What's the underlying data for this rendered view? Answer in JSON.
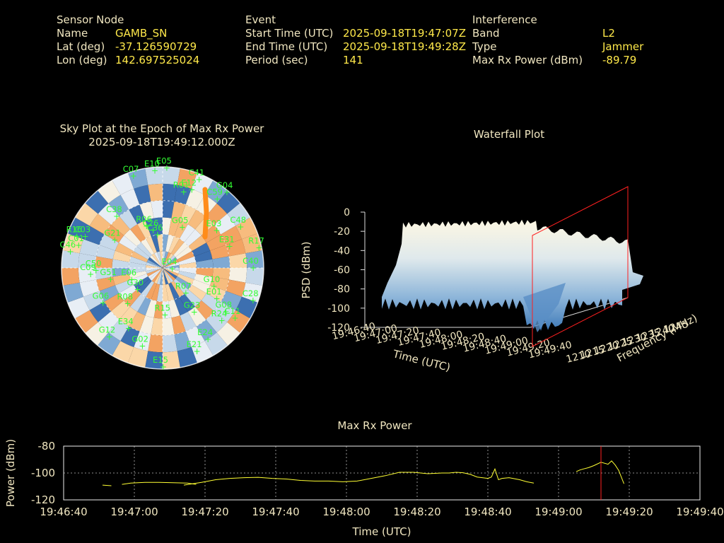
{
  "header": {
    "sensor": {
      "heading": "Sensor Node",
      "name_label": "Name",
      "name_value": "GAMB_SN",
      "lat_label": "Lat (deg)",
      "lat_value": "-37.126590729",
      "lon_label": "Lon (deg)",
      "lon_value": "142.697525024"
    },
    "event": {
      "heading": "Event",
      "start_label": "Start Time (UTC)",
      "start_value": "2025-09-18T19:47:07Z",
      "end_label": "End Time (UTC)",
      "end_value": "2025-09-18T19:49:28Z",
      "period_label": "Period (sec)",
      "period_value": "141"
    },
    "interference": {
      "heading": "Interference",
      "band_label": "Band",
      "band_value": "L2",
      "type_label": "Type",
      "type_value": "Jammer",
      "power_label": "Max Rx Power (dBm)",
      "power_value": "-89.79"
    }
  },
  "colors": {
    "label": "#f0e6c0",
    "value": "#ffe94a",
    "sat": "#33ff33",
    "line": "#ffff33",
    "marker": "#ff2020"
  },
  "chart_data": [
    {
      "type": "scatter",
      "title": "Sky Plot at the Epoch of Max Rx Power",
      "subtitle": "2025-09-18T19:49:12.000Z",
      "satellites": [
        {
          "id": "E05",
          "az": 2,
          "el": 1
        },
        {
          "id": "C07",
          "az": 342,
          "el": 4
        },
        {
          "id": "E10",
          "az": 355,
          "el": 3
        },
        {
          "id": "C41",
          "az": 22,
          "el": 5
        },
        {
          "id": "R01",
          "az": 15,
          "el": 20
        },
        {
          "id": "E12",
          "az": 20,
          "el": 16
        },
        {
          "id": "G04",
          "az": 40,
          "el": 2
        },
        {
          "id": "C59",
          "az": 38,
          "el": 12
        },
        {
          "id": "C38",
          "az": 318,
          "el": 28
        },
        {
          "id": "G05",
          "az": 25,
          "el": 50
        },
        {
          "id": "C36",
          "az": 350,
          "el": 60
        },
        {
          "id": "C26",
          "az": 345,
          "el": 55
        },
        {
          "id": "R06",
          "az": 338,
          "el": 50
        },
        {
          "id": "C48",
          "az": 62,
          "el": 12
        },
        {
          "id": "E03",
          "az": 55,
          "el": 32
        },
        {
          "id": "R17",
          "az": 78,
          "el": 3
        },
        {
          "id": "R16",
          "az": 290,
          "el": 8
        },
        {
          "id": "C03",
          "az": 292,
          "el": 15
        },
        {
          "id": "C01",
          "az": 285,
          "el": 12
        },
        {
          "id": "C46",
          "az": 280,
          "el": 6
        },
        {
          "id": "G21",
          "az": 300,
          "el": 40
        },
        {
          "id": "E31",
          "az": 72,
          "el": 28
        },
        {
          "id": "C40",
          "az": 90,
          "el": 10
        },
        {
          "id": "E04",
          "az": 95,
          "el": 82
        },
        {
          "id": "R07",
          "az": 138,
          "el": 60
        },
        {
          "id": "G10",
          "az": 110,
          "el": 42
        },
        {
          "id": "E01",
          "az": 120,
          "el": 35
        },
        {
          "id": "G23",
          "az": 145,
          "el": 42
        },
        {
          "id": "G08",
          "az": 125,
          "el": 22
        },
        {
          "id": "C28",
          "az": 110,
          "el": 5
        },
        {
          "id": "C11",
          "az": 125,
          "el": 12
        },
        {
          "id": "R24",
          "az": 132,
          "el": 20
        },
        {
          "id": "R15",
          "az": 178,
          "el": 48
        },
        {
          "id": "C09",
          "az": 265,
          "el": 25
        },
        {
          "id": "G06",
          "az": 240,
          "el": 28
        },
        {
          "id": "R08",
          "az": 225,
          "el": 45
        },
        {
          "id": "E34",
          "az": 210,
          "el": 28
        },
        {
          "id": "E15",
          "az": 180,
          "el": 2
        },
        {
          "id": "E24",
          "az": 148,
          "el": 15
        },
        {
          "id": "E21",
          "az": 158,
          "el": 10
        },
        {
          "id": "G02",
          "az": 195,
          "el": 18
        },
        {
          "id": "G12",
          "az": 218,
          "el": 12
        },
        {
          "id": "G30",
          "az": 230,
          "el": 60
        },
        {
          "id": "G51",
          "az": 258,
          "el": 42
        },
        {
          "id": "E06",
          "az": 250,
          "el": 60
        },
        {
          "id": "C50",
          "az": 268,
          "el": 30
        }
      ],
      "grid": true
    },
    {
      "type": "area",
      "title": "Waterfall Plot",
      "xlabel": "Time (UTC)",
      "ylabel": "Frequency (MHz)",
      "zlabel": "PSD (dBm)",
      "x_ticks": [
        "19:46:40",
        "19:47:00",
        "19:47:20",
        "19:47:40",
        "19:48:00",
        "19:48:20",
        "19:48:40",
        "19:49:00",
        "19:49:20",
        "19:49:40"
      ],
      "y_ticks": [
        "1210",
        "1215",
        "1220",
        "1225",
        "1230",
        "1235",
        "1240",
        "1245"
      ],
      "z_ticks": [
        "-120",
        "-100",
        "-80",
        "-60",
        "-40",
        "-20",
        "0"
      ],
      "zlim": [
        -120,
        0
      ]
    },
    {
      "type": "line",
      "title": "Max Rx Power",
      "xlabel": "Time (UTC)",
      "ylabel": "Power (dBm)",
      "x_ticks": [
        "19:46:40",
        "19:47:00",
        "19:47:20",
        "19:47:40",
        "19:48:00",
        "19:48:20",
        "19:48:40",
        "19:49:00",
        "19:49:20",
        "19:49:40"
      ],
      "y_ticks": [
        "-80",
        "-100",
        "-120"
      ],
      "ylim": [
        -120,
        -80
      ],
      "xlim_sec": [
        0,
        180
      ],
      "marker_sec": 152,
      "series": [
        {
          "x": [
            11,
            13.5
          ],
          "y": [
            -109,
            -109.5
          ]
        },
        {
          "x": [
            16.5,
            19,
            23,
            27,
            31,
            35,
            37.5
          ],
          "y": [
            -108.5,
            -107.5,
            -107,
            -107,
            -107.2,
            -107.5,
            -108.5
          ]
        },
        {
          "x": [
            34,
            39,
            43,
            47,
            51,
            55,
            59,
            63,
            67,
            71,
            75,
            79,
            83,
            87,
            91,
            95,
            99,
            103,
            107,
            109,
            111,
            113,
            115,
            117,
            120
          ],
          "y": [
            -109,
            -107,
            -105,
            -104,
            -103.5,
            -103.2,
            -104,
            -104.5,
            -105.5,
            -106,
            -106,
            -106.5,
            -106,
            -104,
            -102,
            -99.5,
            -99.5,
            -100.5,
            -100,
            -100,
            -99.5,
            -99.8,
            -101,
            -103,
            -104
          ]
        },
        {
          "x": [
            120,
            121,
            122,
            123,
            124,
            126,
            129,
            131,
            133
          ],
          "y": [
            -104,
            -103,
            -97,
            -105,
            -104,
            -103.5,
            -105,
            -106.5,
            -107.5
          ]
        },
        {
          "x": [
            148.5,
            150,
            152,
            154,
            155,
            156,
            157,
            158.5
          ],
          "y": [
            -96,
            -94.5,
            -92,
            -93.5,
            -91,
            -94,
            -98,
            -108
          ]
        },
        {
          "x": [
            145,
            146,
            147,
            148.5
          ],
          "y": [
            -99,
            -97.8,
            -97,
            -96
          ]
        }
      ]
    }
  ]
}
